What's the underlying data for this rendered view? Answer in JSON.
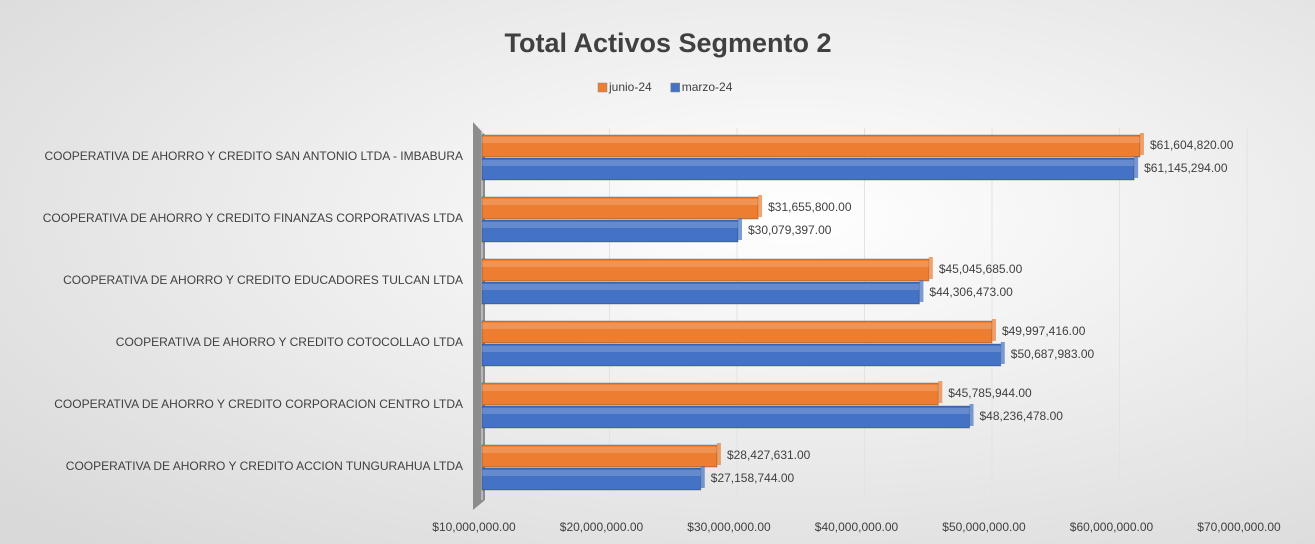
{
  "chart_data": {
    "type": "bar",
    "orientation": "horizontal",
    "title": "Total Activos Segmento 2",
    "categories": [
      "COOPERATIVA DE AHORRO Y CREDITO SAN ANTONIO LTDA - IMBABURA",
      "COOPERATIVA DE AHORRO Y CREDITO FINANZAS CORPORATIVAS LTDA",
      "COOPERATIVA DE AHORRO Y CREDITO EDUCADORES TULCAN LTDA",
      "COOPERATIVA DE AHORRO Y CREDITO COTOCOLLAO LTDA",
      "COOPERATIVA DE AHORRO Y CREDITO CORPORACION CENTRO LTDA",
      "COOPERATIVA DE AHORRO Y CREDITO ACCION TUNGURAHUA LTDA"
    ],
    "series": [
      {
        "name": "junio-24",
        "color": "#ed7d31",
        "values": [
          61604820,
          31655800,
          45045685,
          49997416,
          45785944,
          28427631
        ],
        "value_labels": [
          "$61,604,820.00",
          "$31,655,800.00",
          "$45,045,685.00",
          "$49,997,416.00",
          "$45,785,944.00",
          "$28,427,631.00"
        ]
      },
      {
        "name": "marzo-24",
        "color": "#4472c4",
        "values": [
          61145294,
          30079397,
          44306473,
          50687983,
          48236478,
          27158744
        ],
        "value_labels": [
          "$61,145,294.00",
          "$30,079,397.00",
          "$44,306,473.00",
          "$50,687,983.00",
          "$48,236,478.00",
          "$27,158,744.00"
        ]
      }
    ],
    "xlim": [
      10000000,
      70000000
    ],
    "xticks": [
      {
        "value": 10000000,
        "label": "$10,000,000.00"
      },
      {
        "value": 20000000,
        "label": "$20,000,000.00"
      },
      {
        "value": 30000000,
        "label": "$30,000,000.00"
      },
      {
        "value": 40000000,
        "label": "$40,000,000.00"
      },
      {
        "value": 50000000,
        "label": "$50,000,000.00"
      },
      {
        "value": 60000000,
        "label": "$60,000,000.00"
      },
      {
        "value": 70000000,
        "label": "$70,000,000.00"
      }
    ],
    "grid": true,
    "legend": "top"
  }
}
